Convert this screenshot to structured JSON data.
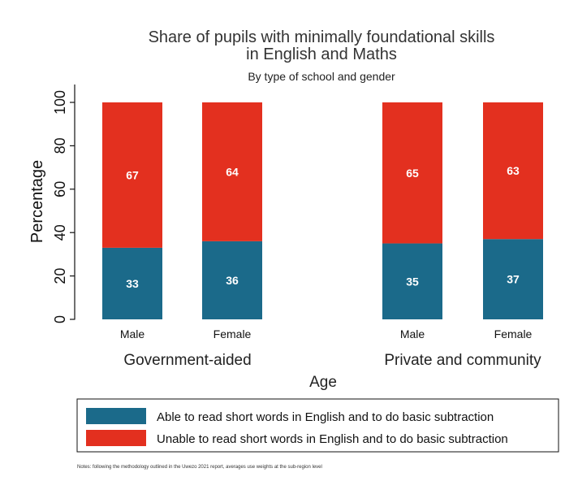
{
  "chart_data": {
    "type": "bar",
    "stacked": true,
    "title": "Share of pupils with minimally foundational skills",
    "title_line2": "in English and Maths",
    "subtitle": "By type of school and gender",
    "ylabel": "Percentage",
    "xlabel": "Age",
    "ylim": [
      0,
      100
    ],
    "yticks": [
      0,
      20,
      40,
      60,
      80,
      100
    ],
    "groups": [
      {
        "name": "Government-aided",
        "categories": [
          "Male",
          "Female"
        ]
      },
      {
        "name": "Private and community",
        "categories": [
          "Male",
          "Female"
        ]
      }
    ],
    "series": [
      {
        "name": "Able to read short words in English and to do basic subtraction",
        "color": "#1b6a8a",
        "values": [
          33,
          36,
          35,
          37
        ]
      },
      {
        "name": "Unable to read short words in English and to do basic subtraction",
        "color": "#e3301f",
        "values": [
          67,
          64,
          65,
          63
        ]
      }
    ],
    "legend_position": "bottom",
    "grid": false
  },
  "note": "Notes: following the methodology outlined in the Uwezo 2021 report, averages use weights at the sub-region level"
}
